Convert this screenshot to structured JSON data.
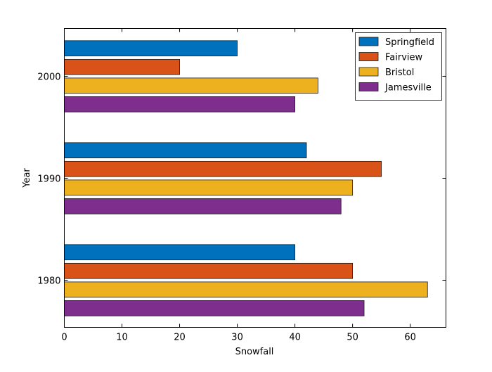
{
  "chart_data": {
    "type": "bar",
    "orientation": "horizontal",
    "categories": [
      "1980",
      "1990",
      "2000"
    ],
    "series": [
      {
        "name": "Springfield",
        "values": [
          40,
          42,
          30
        ],
        "color": "#0072BD"
      },
      {
        "name": "Fairview",
        "values": [
          50,
          55,
          20
        ],
        "color": "#D95319"
      },
      {
        "name": "Bristol",
        "values": [
          63,
          50,
          44
        ],
        "color": "#EDB120"
      },
      {
        "name": "Jamesville",
        "values": [
          52,
          48,
          40
        ],
        "color": "#7E2F8E"
      }
    ],
    "title": "",
    "xlabel": "Snowfall",
    "ylabel": "Year",
    "xlim": [
      0,
      66.2
    ],
    "ylim": [
      1975.38,
      2004.69
    ],
    "xticks": [
      "0",
      "10",
      "20",
      "30",
      "40",
      "50",
      "60"
    ],
    "yticks": [
      "1980",
      "1990",
      "2000"
    ],
    "grid": false,
    "legend": "top-right"
  }
}
